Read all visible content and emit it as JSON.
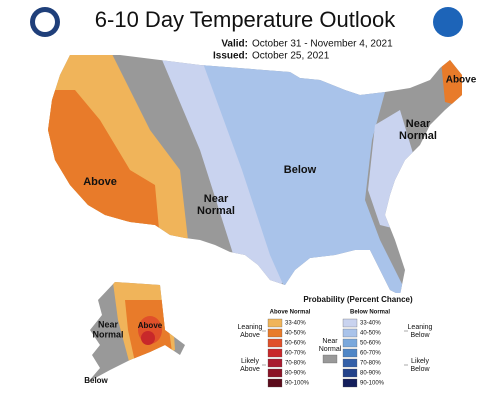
{
  "header": {
    "title": "6-10 Day Temperature Outlook",
    "valid_label": "Valid:",
    "valid": "October 31 - November 4, 2021",
    "issued_label": "Issued:",
    "issued": "October 25, 2021"
  },
  "map_labels": [
    {
      "lines": [
        "Above"
      ]
    },
    {
      "lines": [
        "Near",
        "Normal"
      ]
    },
    {
      "lines": [
        "Below"
      ]
    },
    {
      "lines": [
        "Above"
      ]
    },
    {
      "lines": [
        "Near",
        "Normal"
      ]
    },
    {
      "lines": [
        "Near",
        "Normal"
      ]
    },
    {
      "lines": [
        "Above"
      ]
    },
    {
      "lines": [
        "Below"
      ]
    }
  ],
  "legend": {
    "title": "Probability (Percent Chance)",
    "above_heading": "Above Normal",
    "below_heading": "Below Normal",
    "leaning_above": [
      "Leaning",
      "Above"
    ],
    "likely_above": [
      "Likely",
      "Above"
    ],
    "near_normal": [
      "Near",
      "Normal"
    ],
    "near_color": "#999999",
    "leaning_below": [
      "Leaning",
      "Below"
    ],
    "likely_below": [
      "Likely",
      "Below"
    ],
    "above": [
      {
        "label": "33-40%",
        "color": "#f0b45a"
      },
      {
        "label": "40-50%",
        "color": "#e87b2a"
      },
      {
        "label": "50-60%",
        "color": "#e0502a"
      },
      {
        "label": "60-70%",
        "color": "#c8282a"
      },
      {
        "label": "70-80%",
        "color": "#a81b2f"
      },
      {
        "label": "80-90%",
        "color": "#8a1326"
      },
      {
        "label": "90-100%",
        "color": "#5b0b1b"
      }
    ],
    "below": [
      {
        "label": "33-40%",
        "color": "#c9d3ef"
      },
      {
        "label": "40-50%",
        "color": "#a9c3ea"
      },
      {
        "label": "50-60%",
        "color": "#7aa8dc"
      },
      {
        "label": "60-70%",
        "color": "#4f86c6"
      },
      {
        "label": "70-80%",
        "color": "#3460a8"
      },
      {
        "label": "80-90%",
        "color": "#23428a"
      },
      {
        "label": "90-100%",
        "color": "#141f5c"
      }
    ]
  }
}
